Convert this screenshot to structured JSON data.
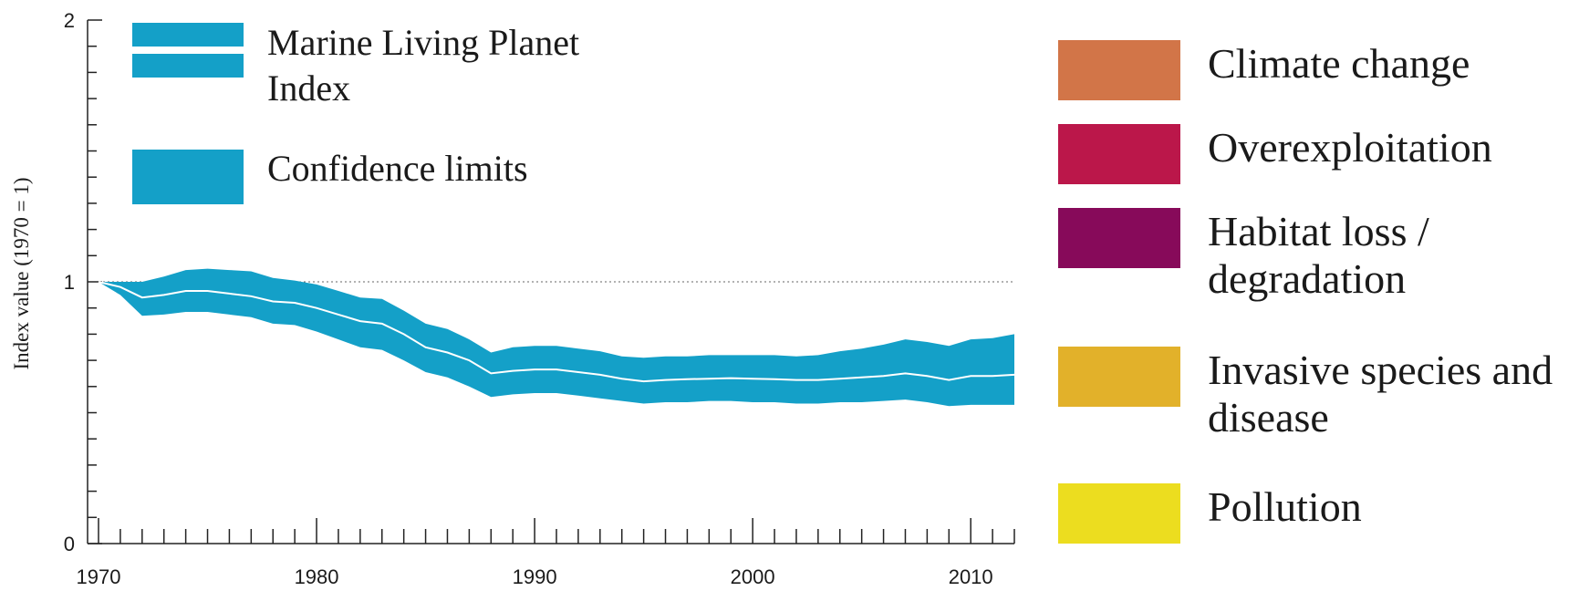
{
  "chart_data": {
    "type": "area",
    "ylabel": "Index value (1970 = 1)",
    "xlabel": "",
    "title": "",
    "xlim": [
      1970,
      2012
    ],
    "ylim": [
      0,
      2
    ],
    "x_ticks": [
      1970,
      1980,
      1990,
      2000,
      2010
    ],
    "y_ticks": [
      0,
      1,
      2
    ],
    "reference_line": 1,
    "x": [
      1970,
      1971,
      1972,
      1973,
      1974,
      1975,
      1976,
      1977,
      1978,
      1979,
      1980,
      1981,
      1982,
      1983,
      1984,
      1985,
      1986,
      1987,
      1988,
      1989,
      1990,
      1991,
      1992,
      1993,
      1994,
      1995,
      1996,
      1997,
      1998,
      1999,
      2000,
      2001,
      2002,
      2003,
      2004,
      2005,
      2006,
      2007,
      2008,
      2009,
      2010,
      2011,
      2012
    ],
    "series": [
      {
        "name": "Marine Living Planet Index",
        "values": [
          1.0,
          0.98,
          0.94,
          0.95,
          0.965,
          0.965,
          0.955,
          0.945,
          0.925,
          0.92,
          0.9,
          0.875,
          0.85,
          0.84,
          0.8,
          0.75,
          0.73,
          0.7,
          0.65,
          0.66,
          0.665,
          0.665,
          0.655,
          0.645,
          0.63,
          0.62,
          0.625,
          0.628,
          0.63,
          0.632,
          0.63,
          0.628,
          0.625,
          0.625,
          0.63,
          0.635,
          0.64,
          0.65,
          0.64,
          0.625,
          0.64,
          0.64,
          0.645
        ]
      },
      {
        "name": "Confidence limits",
        "lower": [
          1.0,
          0.95,
          0.87,
          0.875,
          0.885,
          0.885,
          0.875,
          0.865,
          0.84,
          0.835,
          0.81,
          0.78,
          0.75,
          0.74,
          0.7,
          0.655,
          0.635,
          0.6,
          0.56,
          0.57,
          0.575,
          0.575,
          0.565,
          0.555,
          0.545,
          0.535,
          0.54,
          0.54,
          0.545,
          0.545,
          0.54,
          0.54,
          0.535,
          0.535,
          0.54,
          0.54,
          0.545,
          0.55,
          0.54,
          0.525,
          0.53,
          0.53,
          0.53
        ],
        "upper": [
          1.0,
          1.0,
          1.0,
          1.02,
          1.045,
          1.05,
          1.045,
          1.04,
          1.015,
          1.005,
          0.99,
          0.965,
          0.94,
          0.935,
          0.89,
          0.84,
          0.82,
          0.78,
          0.73,
          0.75,
          0.755,
          0.755,
          0.745,
          0.735,
          0.715,
          0.71,
          0.715,
          0.715,
          0.72,
          0.72,
          0.72,
          0.72,
          0.715,
          0.72,
          0.735,
          0.745,
          0.76,
          0.78,
          0.77,
          0.755,
          0.78,
          0.785,
          0.8
        ]
      }
    ],
    "legend": {
      "index_label": "Marine Living Planet Index",
      "confidence_label": "Confidence limits",
      "placement": "top-left"
    },
    "colors": {
      "band": "#14a0c8",
      "line": "#ffffff",
      "reference": "#666666"
    }
  },
  "drivers": [
    {
      "label": "Climate change",
      "color": "#d27548"
    },
    {
      "label": "Overexploitation",
      "color": "#bb174a"
    },
    {
      "label": "Habitat loss / degradation",
      "color": "#870a5a"
    },
    {
      "label": "Invasive species and disease",
      "color": "#e2b12a"
    },
    {
      "label": "Pollution",
      "color": "#ecdd1f"
    }
  ]
}
